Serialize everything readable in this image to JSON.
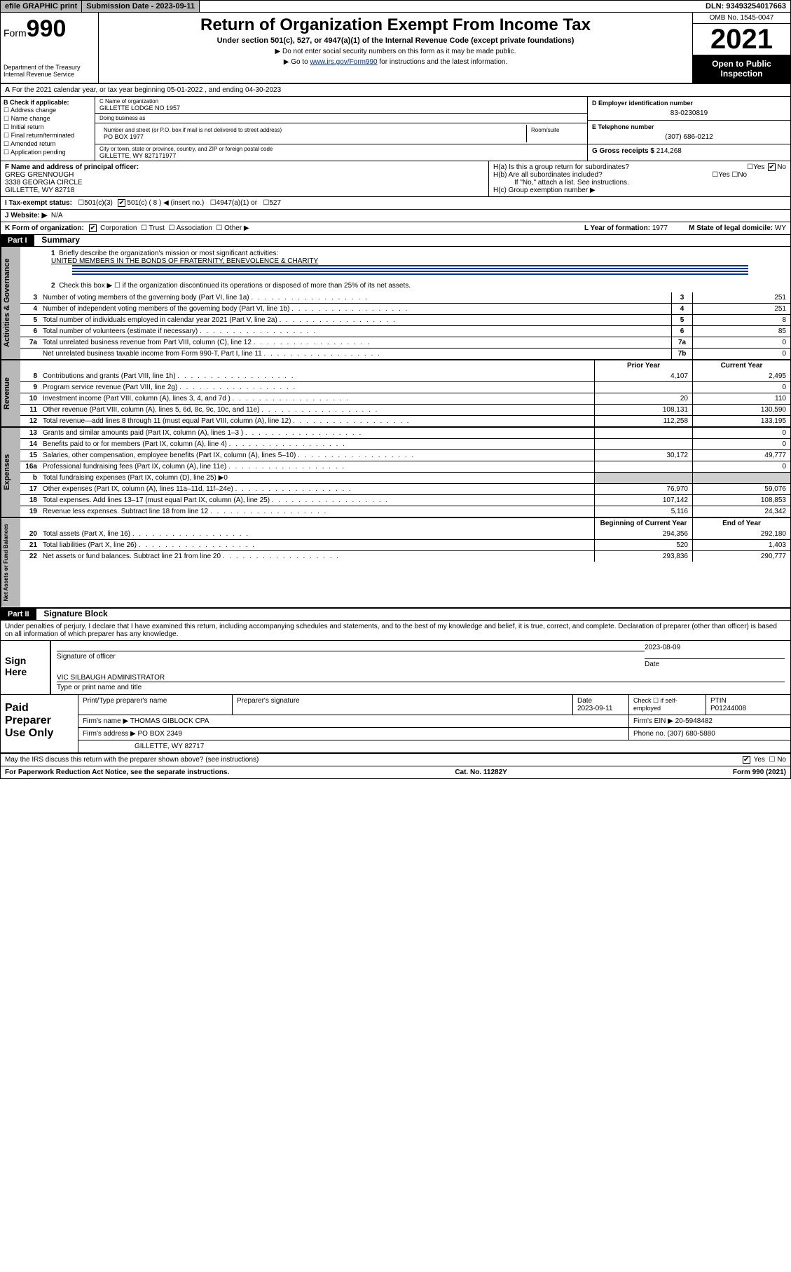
{
  "topbar": {
    "efile": "efile GRAPHIC print",
    "submission_label": "Submission Date - 2023-09-11",
    "dln": "DLN: 93493254017663"
  },
  "header": {
    "form_prefix": "Form",
    "form_number": "990",
    "dept": "Department of the Treasury",
    "irs": "Internal Revenue Service",
    "title": "Return of Organization Exempt From Income Tax",
    "subtitle": "Under section 501(c), 527, or 4947(a)(1) of the Internal Revenue Code (except private foundations)",
    "note1": "▶ Do not enter social security numbers on this form as it may be made public.",
    "note2_pre": "▶ Go to ",
    "note2_link": "www.irs.gov/Form990",
    "note2_post": " for instructions and the latest information.",
    "omb": "OMB No. 1545-0047",
    "year": "2021",
    "inspection": "Open to Public Inspection"
  },
  "section_a": "For the 2021 calendar year, or tax year beginning 05-01-2022   , and ending 04-30-2023",
  "section_b": {
    "label": "B Check if applicable:",
    "opts": [
      "Address change",
      "Name change",
      "Initial return",
      "Final return/terminated",
      "Amended return",
      "Application pending"
    ]
  },
  "section_c": {
    "name_lbl": "C Name of organization",
    "name": "GILLETTE LODGE NO 1957",
    "dba_lbl": "Doing business as",
    "dba": "",
    "addr_lbl": "Number and street (or P.O. box if mail is not delivered to street address)",
    "room_lbl": "Room/suite",
    "addr": "PO BOX 1977",
    "city_lbl": "City or town, state or province, country, and ZIP or foreign postal code",
    "city": "GILLETTE, WY  827171977"
  },
  "section_d": {
    "lbl": "D Employer identification number",
    "val": "83-0230819"
  },
  "section_e": {
    "lbl": "E Telephone number",
    "val": "(307) 686-0212"
  },
  "section_g": {
    "lbl": "G Gross receipts $",
    "val": "214,268"
  },
  "section_f": {
    "lbl": "F  Name and address of principal officer:",
    "name": "GREG GRENNOUGH",
    "addr1": "3338 GEORGIA CIRCLE",
    "addr2": "GILLETTE, WY  82718"
  },
  "section_h": {
    "ha": "H(a)  Is this a group return for subordinates?",
    "hb": "H(b)  Are all subordinates included?",
    "hb_note": "If \"No,\" attach a list. See instructions.",
    "hc": "H(c)  Group exemption number ▶",
    "yes": "Yes",
    "no": "No"
  },
  "section_i": {
    "lbl": "I   Tax-exempt status:",
    "o1": "501(c)(3)",
    "o2": "501(c) ( 8 ) ◀ (insert no.)",
    "o3": "4947(a)(1) or",
    "o4": "527"
  },
  "section_j": {
    "lbl": "J   Website: ▶",
    "val": "N/A"
  },
  "section_k": {
    "lbl": "K Form of organization:",
    "o1": "Corporation",
    "o2": "Trust",
    "o3": "Association",
    "o4": "Other ▶",
    "l_lbl": "L Year of formation:",
    "l_val": "1977",
    "m_lbl": "M State of legal domicile:",
    "m_val": "WY"
  },
  "part1": {
    "hdr": "Part I",
    "title": "Summary",
    "l1_lbl": "Briefly describe the organization's mission or most significant activities:",
    "l1_val": "UNITED MEMBERS IN THE BONDS OF FRATERNITY, BENEVOLENCE & CHARITY",
    "l2": "Check this box ▶ ☐  if the organization discontinued its operations or disposed of more than 25% of its net assets.",
    "tabs": {
      "gov": "Activities & Governance",
      "rev": "Revenue",
      "exp": "Expenses",
      "net": "Net Assets or Fund Balances"
    },
    "cols": {
      "prior": "Prior Year",
      "current": "Current Year",
      "begin": "Beginning of Current Year",
      "end": "End of Year"
    },
    "lines_gov": [
      {
        "n": "3",
        "d": "Number of voting members of the governing body (Part VI, line 1a)",
        "b": "3",
        "v": "251"
      },
      {
        "n": "4",
        "d": "Number of independent voting members of the governing body (Part VI, line 1b)",
        "b": "4",
        "v": "251"
      },
      {
        "n": "5",
        "d": "Total number of individuals employed in calendar year 2021 (Part V, line 2a)",
        "b": "5",
        "v": "8"
      },
      {
        "n": "6",
        "d": "Total number of volunteers (estimate if necessary)",
        "b": "6",
        "v": "85"
      },
      {
        "n": "7a",
        "d": "Total unrelated business revenue from Part VIII, column (C), line 12",
        "b": "7a",
        "v": "0"
      },
      {
        "n": "",
        "d": "Net unrelated business taxable income from Form 990-T, Part I, line 11",
        "b": "7b",
        "v": "0"
      }
    ],
    "lines_rev": [
      {
        "n": "8",
        "d": "Contributions and grants (Part VIII, line 1h)",
        "p": "4,107",
        "c": "2,495"
      },
      {
        "n": "9",
        "d": "Program service revenue (Part VIII, line 2g)",
        "p": "",
        "c": "0"
      },
      {
        "n": "10",
        "d": "Investment income (Part VIII, column (A), lines 3, 4, and 7d )",
        "p": "20",
        "c": "110"
      },
      {
        "n": "11",
        "d": "Other revenue (Part VIII, column (A), lines 5, 6d, 8c, 9c, 10c, and 11e)",
        "p": "108,131",
        "c": "130,590"
      },
      {
        "n": "12",
        "d": "Total revenue—add lines 8 through 11 (must equal Part VIII, column (A), line 12)",
        "p": "112,258",
        "c": "133,195"
      }
    ],
    "lines_exp": [
      {
        "n": "13",
        "d": "Grants and similar amounts paid (Part IX, column (A), lines 1–3 )",
        "p": "",
        "c": "0"
      },
      {
        "n": "14",
        "d": "Benefits paid to or for members (Part IX, column (A), line 4)",
        "p": "",
        "c": "0"
      },
      {
        "n": "15",
        "d": "Salaries, other compensation, employee benefits (Part IX, column (A), lines 5–10)",
        "p": "30,172",
        "c": "49,777"
      },
      {
        "n": "16a",
        "d": "Professional fundraising fees (Part IX, column (A), line 11e)",
        "p": "",
        "c": "0"
      },
      {
        "n": "b",
        "d": "Total fundraising expenses (Part IX, column (D), line 25) ▶0",
        "p": "",
        "c": "",
        "shaded": true
      },
      {
        "n": "17",
        "d": "Other expenses (Part IX, column (A), lines 11a–11d, 11f–24e)",
        "p": "76,970",
        "c": "59,076"
      },
      {
        "n": "18",
        "d": "Total expenses. Add lines 13–17 (must equal Part IX, column (A), line 25)",
        "p": "107,142",
        "c": "108,853"
      },
      {
        "n": "19",
        "d": "Revenue less expenses. Subtract line 18 from line 12",
        "p": "5,116",
        "c": "24,342"
      }
    ],
    "lines_net": [
      {
        "n": "20",
        "d": "Total assets (Part X, line 16)",
        "p": "294,356",
        "c": "292,180"
      },
      {
        "n": "21",
        "d": "Total liabilities (Part X, line 26)",
        "p": "520",
        "c": "1,403"
      },
      {
        "n": "22",
        "d": "Net assets or fund balances. Subtract line 21 from line 20",
        "p": "293,836",
        "c": "290,777"
      }
    ]
  },
  "part2": {
    "hdr": "Part II",
    "title": "Signature Block",
    "penalty": "Under penalties of perjury, I declare that I have examined this return, including accompanying schedules and statements, and to the best of my knowledge and belief, it is true, correct, and complete. Declaration of preparer (other than officer) is based on all information of which preparer has any knowledge.",
    "sign_here": "Sign Here",
    "sig_officer": "Signature of officer",
    "sig_date_lbl": "Date",
    "sig_date": "2023-08-09",
    "officer_name": "VIC SILBAUGH  ADMINISTRATOR",
    "officer_title_lbl": "Type or print name and title",
    "paid": "Paid Preparer Use Only",
    "prep_name_lbl": "Print/Type preparer's name",
    "prep_sig_lbl": "Preparer's signature",
    "prep_date_lbl": "Date",
    "prep_date": "2023-09-11",
    "check_lbl": "Check ☐ if self-employed",
    "ptin_lbl": "PTIN",
    "ptin": "P01244008",
    "firm_name_lbl": "Firm's name   ▶",
    "firm_name": "THOMAS GIBLOCK CPA",
    "firm_ein_lbl": "Firm's EIN ▶",
    "firm_ein": "20-5948482",
    "firm_addr_lbl": "Firm's address ▶",
    "firm_addr1": "PO BOX 2349",
    "firm_addr2": "GILLETTE, WY  82717",
    "phone_lbl": "Phone no.",
    "phone": "(307) 680-5880",
    "discuss": "May the IRS discuss this return with the preparer shown above? (see instructions)",
    "yes": "Yes",
    "no": "No"
  },
  "footer": {
    "pra": "For Paperwork Reduction Act Notice, see the separate instructions.",
    "cat": "Cat. No. 11282Y",
    "form": "Form 990 (2021)"
  }
}
